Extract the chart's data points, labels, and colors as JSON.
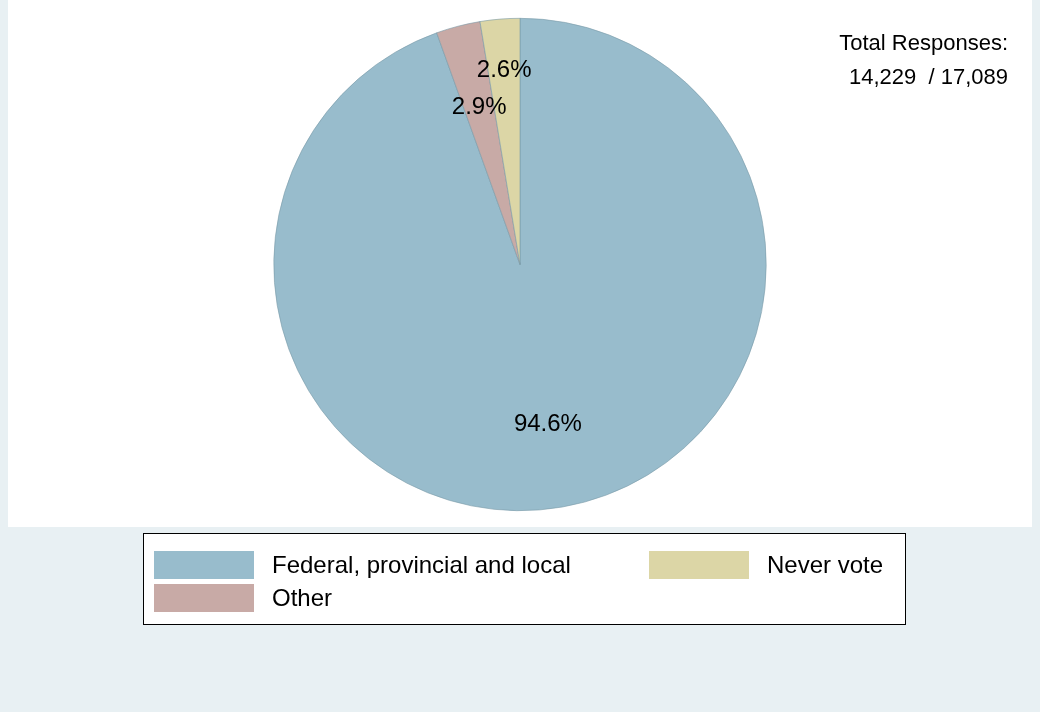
{
  "chart_data": {
    "type": "pie",
    "categories": [
      "Federal, provincial and local",
      "Other",
      "Never vote"
    ],
    "values": [
      94.6,
      2.9,
      2.6
    ],
    "colors": [
      "#98bccc",
      "#c8aaa6",
      "#dcd6a6"
    ],
    "value_labels": [
      "94.6%",
      "2.9%",
      "2.6%"
    ],
    "legend": "bottom",
    "annotations": [
      "Total Responses:",
      "14,229  / 17,089"
    ]
  }
}
